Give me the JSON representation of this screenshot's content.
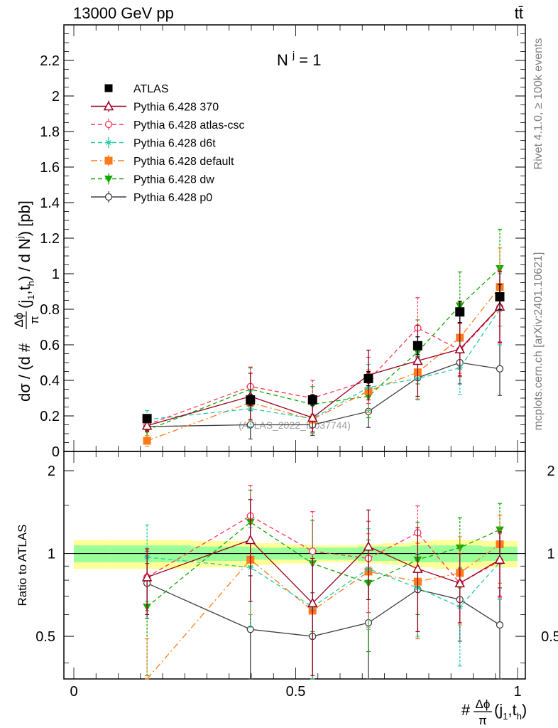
{
  "header": {
    "energy_label": "13000 GeV pp",
    "process_label": "tt̄"
  },
  "side_labels": {
    "rivet": "Rivet 4.1.0, ≥ 100k events",
    "mcplots": "mcplots.cern.ch [arXiv:2401.10621]"
  },
  "watermark": "(ATLAS_2022_I2037744)",
  "panel_title": {
    "main": "N",
    "superscript": "j",
    "suffix": " = 1"
  },
  "y_axis_main": {
    "label_prefix": "dσ / (d #",
    "frac_num": "Δϕ",
    "frac_den": "π",
    "label_args": "(j",
    "sub_1": "1",
    "comma_t": ",t",
    "sub_h": "h",
    "label_mid": ") / d N",
    "sup_j": "j",
    "label_suffix": ") [pb]"
  },
  "y_axis_ratio": {
    "label": "Ratio to ATLAS"
  },
  "x_axis": {
    "label_hash": "#",
    "frac_num": "Δϕ",
    "frac_den": "π",
    "label_args": "(j",
    "sub_1": "1",
    "comma_t": ",t",
    "sub_h": "h",
    "close": ")"
  },
  "colors": {
    "atlas": "#000000",
    "p370": "#9a0020",
    "atlascsc": "#ff3355",
    "d6t": "#22ccaa",
    "default": "#ff7a1a",
    "dw": "#11aa00",
    "p0": "#404040",
    "band_inner": "#99ff99",
    "band_outer": "#ffff99"
  },
  "chart_data": [
    {
      "type": "scatter",
      "panel": "main",
      "title": "N^j = 1",
      "xlabel": "#Δϕ/π(j1,th)",
      "ylabel": "dσ / (d #Δϕ/π(j1,th) / d N^j) [pb]",
      "xlim": [
        0,
        1
      ],
      "ylim": [
        0,
        2.4
      ],
      "yticks": [
        {
          "v": 0,
          "label": "0"
        },
        {
          "v": 0.2,
          "label": "0.2"
        },
        {
          "v": 0.4,
          "label": "0.4"
        },
        {
          "v": 0.6,
          "label": "0.6"
        },
        {
          "v": 0.8,
          "label": "0.8"
        },
        {
          "v": 1.0,
          "label": "1"
        },
        {
          "v": 1.2,
          "label": "1.2"
        },
        {
          "v": 1.4,
          "label": "1.4"
        },
        {
          "v": 1.6,
          "label": "1.6"
        },
        {
          "v": 1.8,
          "label": "1.8"
        },
        {
          "v": 2.0,
          "label": "2"
        },
        {
          "v": 2.2,
          "label": "2.2"
        }
      ],
      "legend_position": "top-left",
      "x": [
        0.165,
        0.398,
        0.538,
        0.664,
        0.775,
        0.87,
        0.96
      ],
      "series": [
        {
          "key": "atlas",
          "name": "ATLAS",
          "marker": "square-filled",
          "line": "none",
          "values": [
            0.185,
            0.29,
            0.29,
            0.41,
            0.595,
            0.785,
            0.87
          ],
          "err": [
            0.02,
            0.03,
            0.03,
            0.04,
            0.05,
            0.06,
            0.07
          ]
        },
        {
          "key": "p370",
          "name": "Pythia 6.428 370",
          "marker": "triangle-open",
          "line": "solid",
          "values": [
            0.145,
            0.31,
            0.19,
            0.43,
            0.51,
            0.575,
            0.815
          ],
          "err": [
            0.03,
            0.13,
            0.08,
            0.14,
            0.2,
            0.15,
            0.2
          ]
        },
        {
          "key": "atlascsc",
          "name": "Pythia 6.428 atlas-csc",
          "marker": "circle-open",
          "line": "dashed",
          "values": [
            0.15,
            0.365,
            0.3,
            0.4,
            0.695,
            0.57,
            0.81
          ],
          "err": [
            0.03,
            0.11,
            0.1,
            0.13,
            0.17,
            0.15,
            0.2
          ]
        },
        {
          "key": "d6t",
          "name": "Pythia 6.428 d6t",
          "marker": "star",
          "line": "dashed",
          "values": [
            0.18,
            0.24,
            0.185,
            0.36,
            0.41,
            0.47,
            0.8
          ],
          "err": [
            0.05,
            0.1,
            0.08,
            0.13,
            0.12,
            0.15,
            0.2
          ]
        },
        {
          "key": "default",
          "name": "Pythia 6.428 default",
          "marker": "square-filled",
          "line": "dashdot",
          "values": [
            0.06,
            0.275,
            0.18,
            0.34,
            0.445,
            0.64,
            0.925
          ],
          "err": [
            0.03,
            0.1,
            0.08,
            0.12,
            0.15,
            0.2,
            0.22
          ]
        },
        {
          "key": "dw",
          "name": "Pythia 6.428 dw",
          "marker": "triangle-down-filled",
          "line": "dashed",
          "values": [
            0.12,
            0.35,
            0.265,
            0.31,
            0.56,
            0.82,
            1.03
          ],
          "err": [
            0.04,
            0.12,
            0.1,
            0.12,
            0.18,
            0.19,
            0.22
          ]
        },
        {
          "key": "p0",
          "name": "Pythia 6.428 p0",
          "marker": "circle-open",
          "line": "solid",
          "values": [
            0.14,
            0.15,
            0.15,
            0.225,
            0.415,
            0.5,
            0.465
          ],
          "err": [
            0.03,
            0.08,
            0.06,
            0.09,
            0.12,
            0.12,
            0.15
          ]
        }
      ]
    },
    {
      "type": "scatter",
      "panel": "ratio",
      "ylabel": "Ratio to ATLAS",
      "xlim": [
        0,
        1
      ],
      "ylim": [
        0.35,
        2.35
      ],
      "yscale": "log",
      "xticks": [
        {
          "v": 0,
          "label": "0"
        },
        {
          "v": 0.5,
          "label": "0.5"
        },
        {
          "v": 1,
          "label": "1"
        }
      ],
      "yticks": [
        {
          "v": 0.5,
          "label": "0.5"
        },
        {
          "v": 1,
          "label": "1"
        },
        {
          "v": 2,
          "label": "2"
        }
      ],
      "bands": {
        "edges": [
          0,
          0.083,
          0.265,
          0.395,
          0.465,
          0.53,
          0.585,
          0.64,
          0.695,
          0.76,
          0.81,
          0.86,
          0.92,
          1.0
        ],
        "inner": [
          0.07,
          0.07,
          0.06,
          0.05,
          0.05,
          0.05,
          0.05,
          0.06,
          0.06,
          0.07,
          0.07,
          0.07,
          0.06
        ],
        "outer": [
          0.12,
          0.12,
          0.11,
          0.09,
          0.08,
          0.07,
          0.07,
          0.08,
          0.09,
          0.11,
          0.12,
          0.12,
          0.11
        ]
      },
      "x": [
        0.165,
        0.398,
        0.538,
        0.664,
        0.775,
        0.87,
        0.96
      ],
      "series": [
        {
          "key": "p370",
          "values": [
            0.82,
            1.12,
            0.66,
            1.06,
            0.88,
            0.78,
            0.95
          ],
          "err": [
            0.22,
            0.45,
            0.3,
            0.38,
            0.36,
            0.22,
            0.25
          ]
        },
        {
          "key": "atlascsc",
          "values": [
            0.82,
            1.37,
            1.02,
            0.96,
            1.19,
            0.78,
            0.94
          ],
          "err": [
            0.2,
            0.4,
            0.4,
            0.35,
            0.3,
            0.22,
            0.25
          ]
        },
        {
          "key": "d6t",
          "values": [
            0.97,
            0.89,
            0.64,
            0.88,
            0.75,
            0.64,
            0.93
          ],
          "err": [
            0.3,
            0.35,
            0.3,
            0.35,
            0.25,
            0.25,
            0.25
          ]
        },
        {
          "key": "default",
          "values": [
            0.34,
            0.95,
            0.62,
            0.86,
            0.79,
            0.85,
            1.08
          ],
          "err": [
            0.15,
            0.35,
            0.3,
            0.32,
            0.3,
            0.3,
            0.3
          ]
        },
        {
          "key": "dw",
          "values": [
            0.64,
            1.3,
            0.92,
            0.78,
            0.95,
            1.05,
            1.22
          ],
          "err": [
            0.28,
            0.4,
            0.4,
            0.34,
            0.35,
            0.3,
            0.3
          ]
        },
        {
          "key": "p0",
          "values": [
            0.78,
            0.53,
            0.5,
            0.56,
            0.74,
            0.68,
            0.55
          ],
          "err": [
            0.2,
            0.3,
            0.22,
            0.24,
            0.25,
            0.2,
            0.2
          ]
        }
      ]
    }
  ]
}
